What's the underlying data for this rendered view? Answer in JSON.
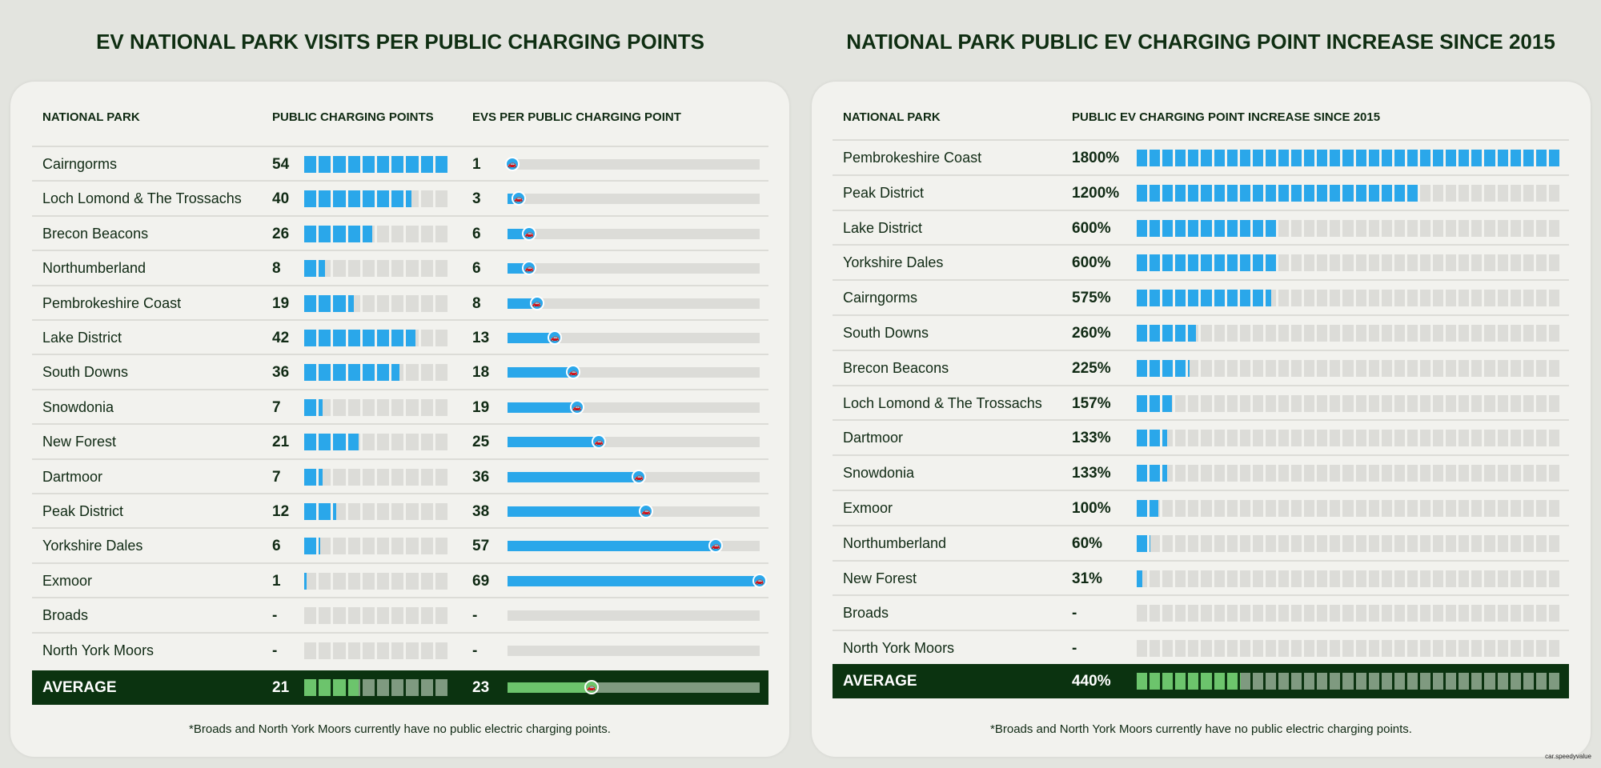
{
  "colors": {
    "bar": "#2aa7ea",
    "empty": "#dcdcd8",
    "avg_bg": "#0b3310",
    "avg_fill": "#6cc46c",
    "avg_empty": "#7f9a80",
    "title": "#0f2e12"
  },
  "chart_data": [
    {
      "type": "bar",
      "title": "EV NATIONAL PARK VISITS PER PUBLIC CHARGING POINTS",
      "columns": [
        "NATIONAL PARK",
        "PUBLIC CHARGING POINTS",
        "EVS PER PUBLIC CHARGING POINT"
      ],
      "categories": [
        "Cairngorms",
        "Loch Lomond & The Trossachs",
        "Brecon Beacons",
        "Northumberland",
        "Pembrokeshire Coast",
        "Lake District",
        "South Downs",
        "Snowdonia",
        "New Forest",
        "Dartmoor",
        "Peak District",
        "Yorkshire Dales",
        "Exmoor",
        "Broads",
        "North York Moors"
      ],
      "series": [
        {
          "name": "PUBLIC CHARGING POINTS",
          "values": [
            54,
            40,
            26,
            8,
            19,
            42,
            36,
            7,
            21,
            7,
            12,
            6,
            1,
            null,
            null
          ],
          "max": 54
        },
        {
          "name": "EVS PER PUBLIC CHARGING POINT",
          "values": [
            1,
            3,
            6,
            6,
            8,
            13,
            18,
            19,
            25,
            36,
            38,
            57,
            69,
            null,
            null
          ],
          "max": 69
        }
      ],
      "missing_label": "-",
      "average": {
        "label": "AVERAGE",
        "values": [
          21,
          23
        ]
      },
      "footnote": "*Broads and North York Moors currently have no public electric charging points."
    },
    {
      "type": "bar",
      "title": "NATIONAL PARK PUBLIC EV CHARGING POINT INCREASE SINCE 2015",
      "columns": [
        "NATIONAL PARK",
        "PUBLIC EV CHARGING POINT INCREASE SINCE 2015"
      ],
      "categories": [
        "Pembrokeshire Coast",
        "Peak District",
        "Lake District",
        "Yorkshire Dales",
        "Cairngorms",
        "South Downs",
        "Brecon Beacons",
        "Loch Lomond & The Trossachs",
        "Dartmoor",
        "Snowdonia",
        "Exmoor",
        "Northumberland",
        "New Forest",
        "Broads",
        "North York Moors"
      ],
      "series": [
        {
          "name": "PUBLIC EV CHARGING POINT INCREASE SINCE 2015",
          "values": [
            1800,
            1200,
            600,
            600,
            575,
            260,
            225,
            157,
            133,
            133,
            100,
            60,
            31,
            null,
            null
          ],
          "unit": "%",
          "max": 1800
        }
      ],
      "missing_label": "-",
      "average": {
        "label": "AVERAGE",
        "values": [
          440
        ]
      },
      "footnote": "*Broads and North York Moors currently have no public electric charging points."
    }
  ],
  "credit": "car.speedyvalue"
}
